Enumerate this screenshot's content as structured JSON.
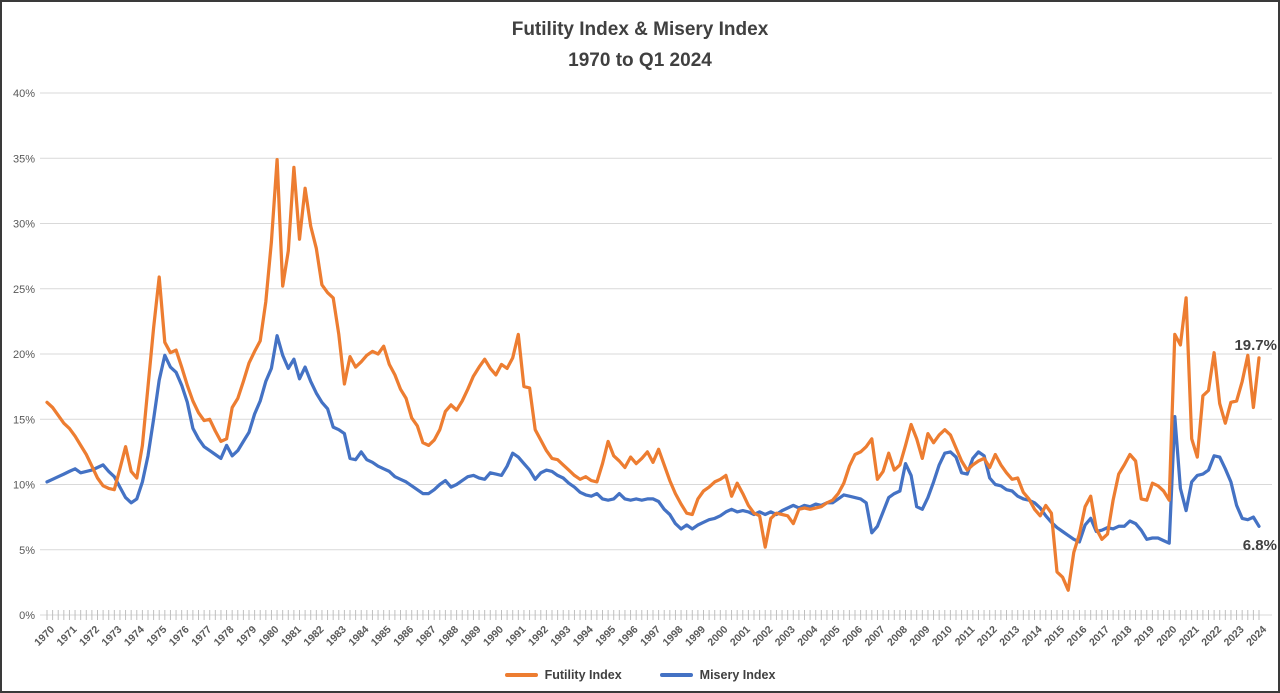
{
  "chart_data": {
    "type": "line",
    "title": "Futility Index & Misery Index",
    "subtitle": "1970 to Q1 2024",
    "frequency": "quarterly",
    "x_range_description": "1970 Q1 through 2024 Q1, quarterly points",
    "x_tick_labels": [
      "1970",
      "1971",
      "1972",
      "1973",
      "1974",
      "1975",
      "1976",
      "1977",
      "1978",
      "1979",
      "1980",
      "1981",
      "1982",
      "1983",
      "1984",
      "1985",
      "1986",
      "1987",
      "1988",
      "1989",
      "1990",
      "1991",
      "1992",
      "1993",
      "1994",
      "1995",
      "1996",
      "1997",
      "1998",
      "1999",
      "2000",
      "2001",
      "2002",
      "2003",
      "2004",
      "2005",
      "2006",
      "2007",
      "2008",
      "2009",
      "2010",
      "2011",
      "2012",
      "2013",
      "2014",
      "2015",
      "2016",
      "2017",
      "2018",
      "2019",
      "2020",
      "2021",
      "2022",
      "2023",
      "2024"
    ],
    "y_tick_labels": [
      "0%",
      "5%",
      "10%",
      "15%",
      "20%",
      "25%",
      "30%",
      "35%",
      "40%"
    ],
    "ylim": [
      0,
      40
    ],
    "grid": "horizontal",
    "legend_position": "bottom",
    "axis_label_color": "#595959",
    "gridline_color": "#d9d9d9",
    "tick_color": "#bfbfbf",
    "annotation_color": "#404040",
    "series": [
      {
        "name": "Futility Index",
        "color": "#ED7D31",
        "end_label": "19.7%",
        "values": [
          16.3,
          15.9,
          15.3,
          14.7,
          14.3,
          13.7,
          13.0,
          12.3,
          11.4,
          10.5,
          9.9,
          9.7,
          9.6,
          11.2,
          12.9,
          11.0,
          10.5,
          13.0,
          17.5,
          22.0,
          25.9,
          20.9,
          20.1,
          20.3,
          19.0,
          17.6,
          16.4,
          15.5,
          14.9,
          15.0,
          14.1,
          13.3,
          13.5,
          15.9,
          16.6,
          17.9,
          19.3,
          20.2,
          21.0,
          24.0,
          28.6,
          34.9,
          25.2,
          27.9,
          34.3,
          28.8,
          32.7,
          29.8,
          28.1,
          25.3,
          24.7,
          24.3,
          21.5,
          17.7,
          19.8,
          19.0,
          19.4,
          19.9,
          20.2,
          20.0,
          20.6,
          19.2,
          18.4,
          17.3,
          16.6,
          15.1,
          14.5,
          13.2,
          13.0,
          13.4,
          14.2,
          15.6,
          16.1,
          15.7,
          16.4,
          17.3,
          18.3,
          19.0,
          19.6,
          18.9,
          18.4,
          19.2,
          18.9,
          19.7,
          21.5,
          17.5,
          17.4,
          14.2,
          13.4,
          12.6,
          12.0,
          11.9,
          11.5,
          11.1,
          10.7,
          10.4,
          10.6,
          10.3,
          10.2,
          11.6,
          13.3,
          12.2,
          11.8,
          11.3,
          12.1,
          11.6,
          12.0,
          12.5,
          11.7,
          12.7,
          11.5,
          10.3,
          9.3,
          8.5,
          7.8,
          7.7,
          8.9,
          9.5,
          9.8,
          10.2,
          10.4,
          10.7,
          9.1,
          10.1,
          9.3,
          8.4,
          7.8,
          7.6,
          5.2,
          7.4,
          7.8,
          7.7,
          7.6,
          7.0,
          8.1,
          8.2,
          8.1,
          8.2,
          8.3,
          8.6,
          8.8,
          9.3,
          10.1,
          11.4,
          12.3,
          12.5,
          12.9,
          13.5,
          10.4,
          11.0,
          12.4,
          11.1,
          11.5,
          13.0,
          14.6,
          13.5,
          12.0,
          13.9,
          13.2,
          13.8,
          14.2,
          13.8,
          12.8,
          11.8,
          11.1,
          11.5,
          11.8,
          12.0,
          11.3,
          12.3,
          11.5,
          10.9,
          10.4,
          10.5,
          9.4,
          8.9,
          8.1,
          7.6,
          8.4,
          7.8,
          3.3,
          2.9,
          1.9,
          4.8,
          6.2,
          8.3,
          9.1,
          6.6,
          5.8,
          6.2,
          8.8,
          10.8,
          11.5,
          12.3,
          11.8,
          8.9,
          8.8,
          10.1,
          9.9,
          9.5,
          8.8,
          21.5,
          20.7,
          24.3,
          13.5,
          12.1,
          16.8,
          17.2,
          20.1,
          16.2,
          14.7,
          16.3,
          16.4,
          17.9,
          19.9,
          15.9,
          19.7
        ]
      },
      {
        "name": "Misery Index",
        "color": "#4472C4",
        "end_label": "6.8%",
        "values": [
          10.2,
          10.4,
          10.6,
          10.8,
          11.0,
          11.2,
          10.9,
          11.0,
          11.1,
          11.3,
          11.5,
          11.0,
          10.6,
          9.8,
          9.0,
          8.6,
          8.9,
          10.2,
          12.2,
          15.0,
          18.0,
          19.9,
          19.0,
          18.6,
          17.6,
          16.3,
          14.3,
          13.5,
          12.9,
          12.6,
          12.3,
          12.0,
          13.0,
          12.2,
          12.6,
          13.3,
          14.0,
          15.4,
          16.4,
          17.9,
          18.9,
          21.4,
          19.9,
          18.9,
          19.6,
          18.1,
          19.0,
          17.9,
          17.0,
          16.3,
          15.8,
          14.4,
          14.2,
          13.9,
          12.0,
          11.9,
          12.5,
          11.9,
          11.7,
          11.4,
          11.2,
          11.0,
          10.6,
          10.4,
          10.2,
          9.9,
          9.6,
          9.3,
          9.3,
          9.6,
          10.0,
          10.3,
          9.8,
          10.0,
          10.3,
          10.6,
          10.7,
          10.5,
          10.4,
          10.9,
          10.8,
          10.7,
          11.4,
          12.4,
          12.1,
          11.6,
          11.1,
          10.4,
          10.9,
          11.1,
          11.0,
          10.7,
          10.5,
          10.1,
          9.8,
          9.4,
          9.2,
          9.1,
          9.3,
          8.9,
          8.8,
          8.9,
          9.3,
          8.9,
          8.8,
          8.9,
          8.8,
          8.9,
          8.9,
          8.7,
          8.1,
          7.7,
          7.0,
          6.6,
          6.9,
          6.6,
          6.9,
          7.1,
          7.3,
          7.4,
          7.6,
          7.9,
          8.1,
          7.9,
          8.0,
          7.9,
          7.7,
          7.9,
          7.7,
          7.9,
          7.7,
          8.0,
          8.2,
          8.4,
          8.2,
          8.4,
          8.3,
          8.5,
          8.4,
          8.6,
          8.6,
          8.9,
          9.2,
          9.1,
          9.0,
          8.9,
          8.6,
          6.3,
          6.8,
          7.9,
          9.0,
          9.3,
          9.5,
          11.6,
          10.7,
          8.3,
          8.1,
          9.0,
          10.2,
          11.5,
          12.4,
          12.5,
          12.1,
          10.9,
          10.8,
          12.0,
          12.5,
          12.2,
          10.5,
          10.0,
          9.9,
          9.6,
          9.5,
          9.1,
          8.9,
          8.8,
          8.6,
          8.2,
          7.6,
          7.1,
          6.7,
          6.4,
          6.1,
          5.8,
          5.6,
          6.9,
          7.4,
          6.4,
          6.5,
          6.7,
          6.6,
          6.8,
          6.8,
          7.2,
          7.0,
          6.5,
          5.8,
          5.9,
          5.9,
          5.7,
          5.5,
          15.2,
          9.7,
          8.0,
          10.2,
          10.7,
          10.8,
          11.1,
          12.2,
          12.1,
          11.2,
          10.2,
          8.4,
          7.4,
          7.3,
          7.5,
          6.8
        ]
      }
    ]
  }
}
